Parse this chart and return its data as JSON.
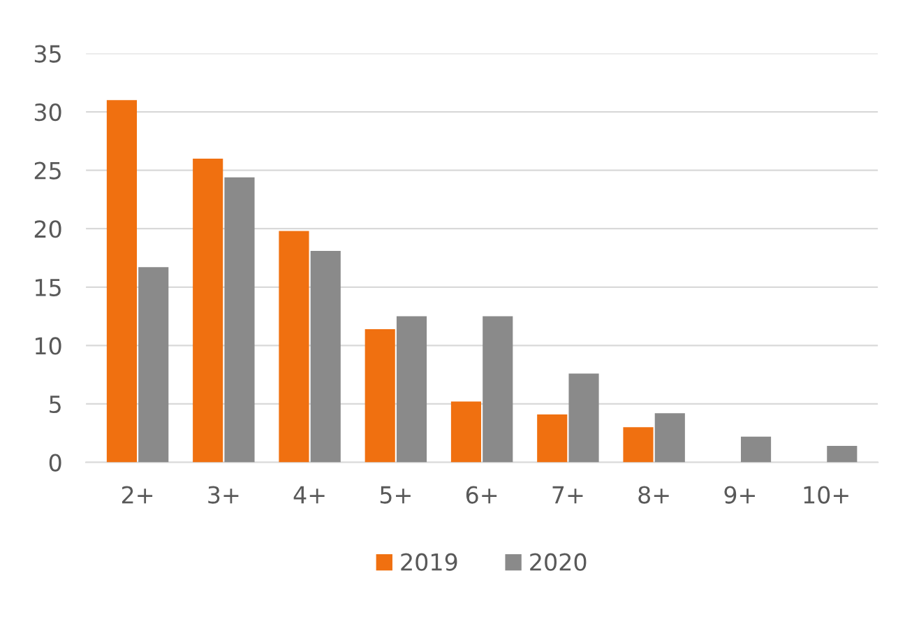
{
  "chart_data": {
    "type": "bar",
    "categories": [
      "2+",
      "3+",
      "4+",
      "5+",
      "6+",
      "7+",
      "8+",
      "9+",
      "10+"
    ],
    "series": [
      {
        "name": "2019",
        "color": "#f07010",
        "values": [
          31,
          26,
          19.8,
          11.4,
          5.2,
          4.1,
          3.0,
          null,
          null
        ]
      },
      {
        "name": "2020",
        "color": "#8a8a8a",
        "values": [
          16.7,
          24.4,
          18.1,
          12.5,
          12.5,
          7.6,
          4.2,
          2.2,
          1.4
        ]
      }
    ],
    "ylim": [
      0,
      35
    ],
    "yticks": [
      0,
      5,
      10,
      15,
      20,
      25,
      30,
      35
    ],
    "grid": "y",
    "legend": "bottom"
  }
}
